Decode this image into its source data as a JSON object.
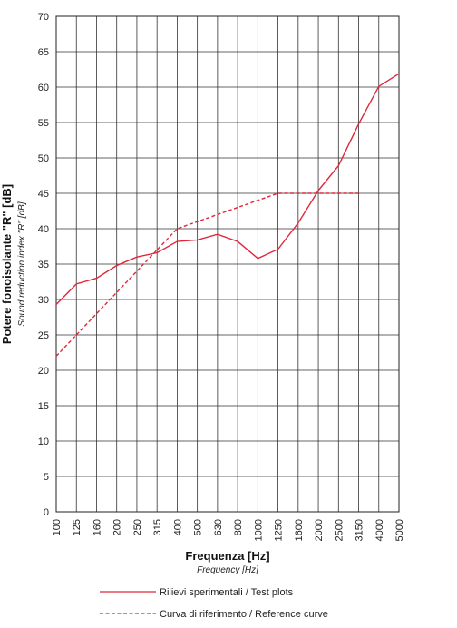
{
  "chart_data": {
    "type": "line",
    "title": "",
    "xlabel": "Frequenza [Hz]",
    "xlabel_sub": "Frequency [Hz]",
    "ylabel": "Potere fonoisolante \"R\" [dB]",
    "ylabel_sub": "Sound reduction index \"R\" [dB]",
    "categories": [
      "100",
      "125",
      "160",
      "200",
      "250",
      "315",
      "400",
      "500",
      "630",
      "800",
      "1000",
      "1250",
      "1600",
      "2000",
      "2500",
      "3150",
      "4000",
      "5000"
    ],
    "ylim": [
      0,
      70
    ],
    "yticks": [
      0,
      5,
      10,
      15,
      20,
      25,
      30,
      35,
      40,
      45,
      50,
      55,
      60,
      65,
      70
    ],
    "grid": true,
    "legend_position": "bottom",
    "series": [
      {
        "name": "Rilievi sperimentali / Test plots",
        "style": "solid",
        "color": "#e0283c",
        "values": [
          29.3,
          32.2,
          33.0,
          34.8,
          36.0,
          36.6,
          38.2,
          38.4,
          39.2,
          38.2,
          35.8,
          37.1,
          40.8,
          45.4,
          48.9,
          54.8,
          60.1,
          61.9
        ]
      },
      {
        "name": "Curva di riferimento / Reference curve",
        "style": "dashed",
        "color": "#e0283c",
        "values": [
          22.0,
          25.0,
          28.0,
          31.0,
          34.0,
          37.0,
          40.0,
          41.0,
          42.0,
          43.0,
          44.0,
          45.0,
          45.0,
          45.0,
          45.0,
          45.0,
          null,
          null
        ]
      }
    ]
  }
}
